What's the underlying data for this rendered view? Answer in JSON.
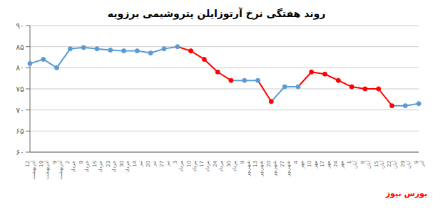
{
  "chart_data": {
    "type": "line",
    "title": "روند هفتگی نرخ آرتوزایلن پتروشیمی برزویه",
    "categories": [
      "12\nآذربهشت",
      "19\nآذربهشت",
      "9\nآذربهشت",
      "2\nخرداد",
      "9\nخرداد",
      "16\nخرداد",
      "23\nخرداد",
      "30\nخرداد",
      "14\nتیر",
      "20\nتیر",
      "27\nتیر",
      "3\nمرداد",
      "10\nمرداد",
      "17\nمرداد",
      "24\nمرداد",
      "30\nمرداد",
      "9\nشهریور",
      "13\nشهریور",
      "20\nشهریور",
      "27\nشهریور",
      "4\nمهر",
      "10\nمهر",
      "17\nمهر",
      "24\nمهر",
      "1\nآبان",
      "8\nآبان",
      "15\nآبان",
      "22\nآبان",
      "29\nآبان",
      "9\nآذر"
    ],
    "values": [
      81,
      82,
      80,
      84.5,
      84.8,
      84.5,
      84.2,
      84,
      84,
      83.5,
      84.5,
      85,
      84,
      82,
      79,
      77,
      77,
      77,
      72,
      75.5,
      75.5,
      79,
      78.5,
      77,
      75.5,
      75,
      75,
      71,
      71,
      71.5
    ],
    "colors": [
      "#5B9BD5",
      "#5B9BD5",
      "#5B9BD5",
      "#5B9BD5",
      "#5B9BD5",
      "#5B9BD5",
      "#5B9BD5",
      "#5B9BD5",
      "#5B9BD5",
      "#5B9BD5",
      "#5B9BD5",
      "#5B9BD5",
      "#FF0000",
      "#FF0000",
      "#FF0000",
      "#FF0000",
      "#5B9BD5",
      "#5B9BD5",
      "#FF0000",
      "#5B9BD5",
      "#5B9BD5",
      "#FF0000",
      "#FF0000",
      "#FF0000",
      "#FF0000",
      "#FF0000",
      "#FF0000",
      "#FF0000",
      "#5B9BD5",
      "#5B9BD5"
    ],
    "ylim": [
      60,
      90
    ],
    "yticks": [
      {
        "value": 60,
        "label": "۶۰"
      },
      {
        "value": 65,
        "label": "۶۵"
      },
      {
        "value": 70,
        "label": "۷۰"
      },
      {
        "value": 75,
        "label": "۷۵"
      },
      {
        "value": 80,
        "label": "۸۰"
      },
      {
        "value": 85,
        "label": "۸۵"
      },
      {
        "value": 90,
        "label": "۹۰"
      }
    ],
    "grid": true,
    "annotations": [
      {
        "text": "بورس نیوز",
        "color": "red"
      }
    ]
  }
}
